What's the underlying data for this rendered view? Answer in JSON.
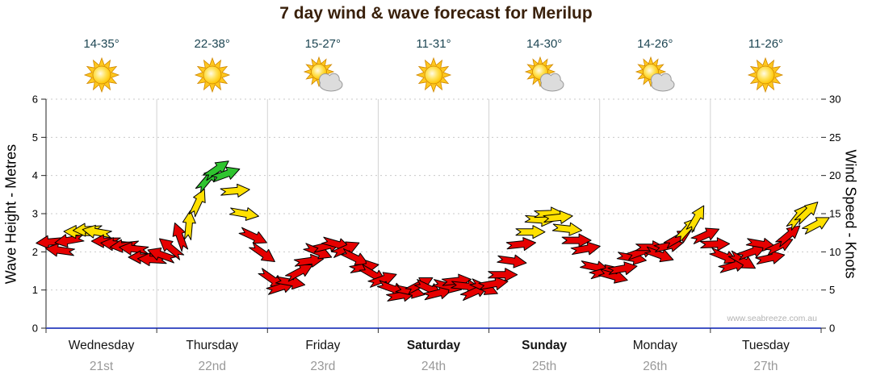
{
  "title": "7 day wind & wave forecast for Merilup",
  "watermark": "www.seabreeze.com.au",
  "days": [
    {
      "name": "Wednesday",
      "date": "21st",
      "temp": "14-35°",
      "icon": "sunny",
      "bold": false
    },
    {
      "name": "Thursday",
      "date": "22nd",
      "temp": "22-38°",
      "icon": "sunny",
      "bold": false
    },
    {
      "name": "Friday",
      "date": "23rd",
      "temp": "15-27°",
      "icon": "partly-cloudy",
      "bold": false
    },
    {
      "name": "Saturday",
      "date": "24th",
      "temp": "11-31°",
      "icon": "sunny",
      "bold": true
    },
    {
      "name": "Sunday",
      "date": "25th",
      "temp": "14-30°",
      "icon": "partly-cloudy",
      "bold": true
    },
    {
      "name": "Monday",
      "date": "26th",
      "temp": "14-26°",
      "icon": "partly-cloudy",
      "bold": false
    },
    {
      "name": "Tuesday",
      "date": "27th",
      "temp": "11-26°",
      "icon": "sunny",
      "bold": false
    }
  ],
  "chart_data": {
    "type": "wind-arrows",
    "days_count": 7,
    "left_axis": {
      "label": "Wave Height - Metres",
      "min": 0,
      "max": 6,
      "ticks": [
        0,
        1,
        2,
        3,
        4,
        5,
        6
      ]
    },
    "right_axis": {
      "label": "Wind Speed - Knots",
      "min": 0,
      "max": 30,
      "ticks": [
        0,
        5,
        10,
        15,
        20,
        25,
        30
      ]
    },
    "color_scale": [
      {
        "name": "light",
        "max_knots": 12.4,
        "color": "#e60000"
      },
      {
        "name": "moderate",
        "max_knots": 18.9,
        "color": "#ffe000"
      },
      {
        "name": "fresh",
        "max_knots": 30,
        "color": "#2fc42f"
      }
    ],
    "series": [
      {
        "day_index": 0,
        "knots": [
          11.3,
          10.2,
          11.5,
          12.6,
          12.9,
          12.6,
          11.4,
          11.0,
          10.8,
          10.4,
          9.3,
          9.0
        ],
        "dir_deg": [
          185,
          172,
          190,
          178,
          183,
          170,
          180,
          175,
          186,
          174,
          180,
          177
        ]
      },
      {
        "day_index": 1,
        "knots": [
          9.6,
          10.5,
          12.0,
          13.5,
          16.5,
          19.5,
          20.8,
          20.2,
          18.0,
          15.0,
          12.0,
          9.8
        ],
        "dir_deg": [
          160,
          140,
          110,
          85,
          65,
          50,
          35,
          20,
          5,
          -10,
          -25,
          -35
        ]
      },
      {
        "day_index": 2,
        "knots": [
          6.4,
          5.4,
          6.0,
          7.4,
          8.8,
          10.0,
          10.8,
          11.0,
          10.4,
          9.2,
          8.0,
          7.0
        ],
        "dir_deg": [
          -35,
          18,
          -10,
          28,
          8,
          -22,
          14,
          -16,
          24,
          -26,
          10,
          -30
        ]
      },
      {
        "day_index": 3,
        "knots": [
          6.4,
          5.2,
          4.3,
          4.8,
          5.7,
          5.2,
          4.6,
          5.5,
          6.2,
          5.5,
          4.8,
          5.3
        ],
        "dir_deg": [
          20,
          -20,
          10,
          -12,
          28,
          -25,
          14,
          -14,
          6,
          -6,
          24,
          -24
        ]
      },
      {
        "day_index": 4,
        "knots": [
          5.8,
          7.0,
          8.8,
          11.0,
          12.6,
          14.2,
          15.0,
          14.5,
          13.0,
          11.5,
          10.4,
          8.0
        ],
        "dir_deg": [
          10,
          0,
          -8,
          6,
          0,
          -4,
          2,
          6,
          -6,
          0,
          10,
          -12
        ]
      },
      {
        "day_index": 5,
        "knots": [
          7.4,
          6.8,
          7.8,
          9.2,
          10.0,
          10.6,
          9.6,
          10.8,
          11.8,
          13.0,
          14.4,
          12.2
        ],
        "dir_deg": [
          16,
          -16,
          10,
          -10,
          20,
          0,
          -20,
          12,
          30,
          48,
          60,
          24
        ]
      },
      {
        "day_index": 6,
        "knots": [
          11.0,
          9.4,
          8.2,
          8.8,
          10.0,
          11.0,
          9.2,
          10.8,
          12.2,
          14.6,
          15.2,
          13.6
        ],
        "dir_deg": [
          2,
          -22,
          16,
          -30,
          20,
          -10,
          12,
          26,
          40,
          52,
          44,
          28
        ]
      }
    ],
    "grid": {
      "horizontal_dotted": true,
      "vertical_day_lines": true
    }
  }
}
